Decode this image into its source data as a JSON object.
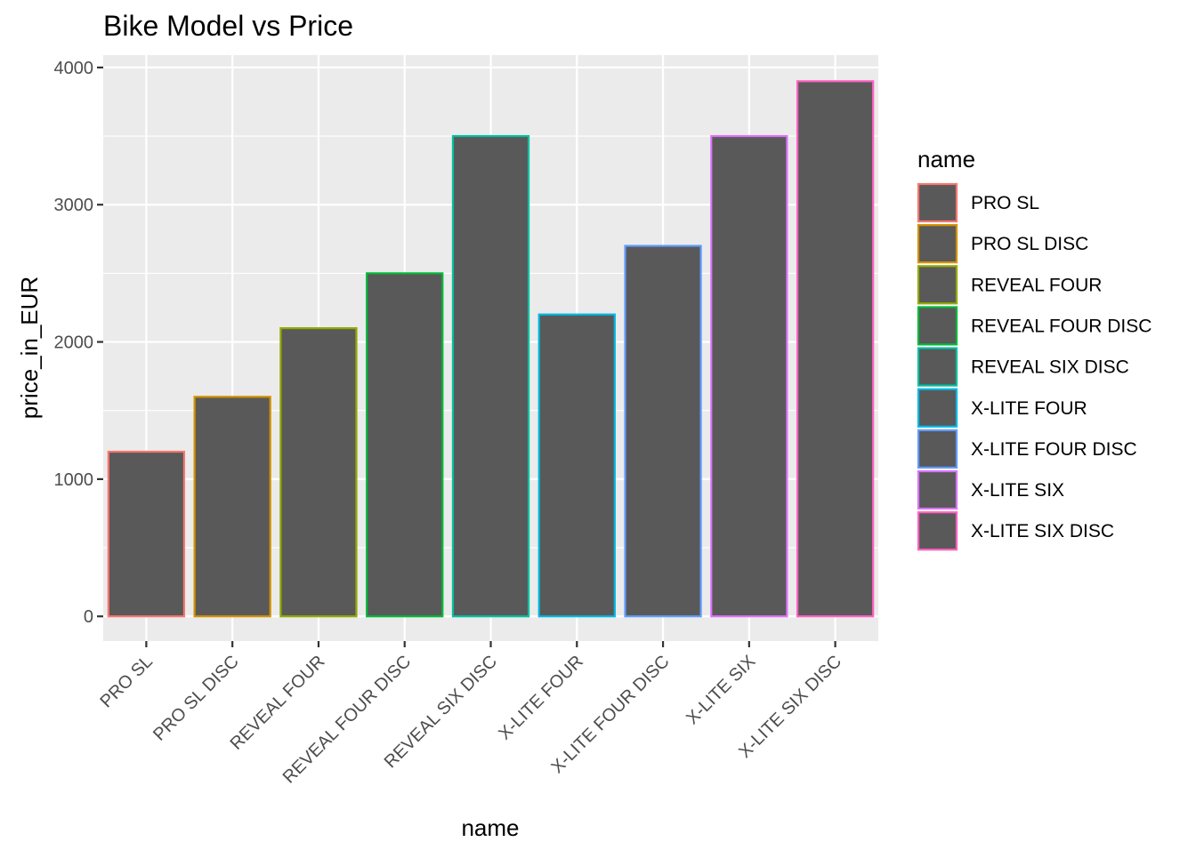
{
  "chart_data": {
    "type": "bar",
    "title": "Bike Model vs Price",
    "xlabel": "name",
    "ylabel": "price_in_EUR",
    "categories": [
      "PRO SL",
      "PRO SL DISC",
      "REVEAL FOUR",
      "REVEAL FOUR DISC",
      "REVEAL SIX DISC",
      "X-LITE FOUR",
      "X-LITE FOUR DISC",
      "X-LITE SIX",
      "X-LITE SIX DISC"
    ],
    "values": [
      1200,
      1600,
      2100,
      2500,
      3500,
      2200,
      2700,
      3500,
      3900
    ],
    "ylim": [
      -180,
      4090
    ],
    "yticks": [
      0,
      1000,
      2000,
      3000,
      4000
    ],
    "yticks_labels": [
      "0",
      "1000",
      "2000",
      "3000",
      "4000"
    ],
    "grid": true,
    "bar_fill": "#595959",
    "panel_background": "#ebebeb",
    "series_colors": [
      "#F8766D",
      "#D39200",
      "#93AA00",
      "#00BA38",
      "#00C19F",
      "#00B9E3",
      "#619CFF",
      "#DB72FB",
      "#FF61C3"
    ],
    "legend": {
      "title": "name",
      "placement": "right",
      "entries": [
        "PRO SL",
        "PRO SL DISC",
        "REVEAL FOUR",
        "REVEAL FOUR DISC",
        "REVEAL SIX DISC",
        "X-LITE FOUR",
        "X-LITE FOUR DISC",
        "X-LITE SIX",
        "X-LITE SIX DISC"
      ]
    }
  }
}
